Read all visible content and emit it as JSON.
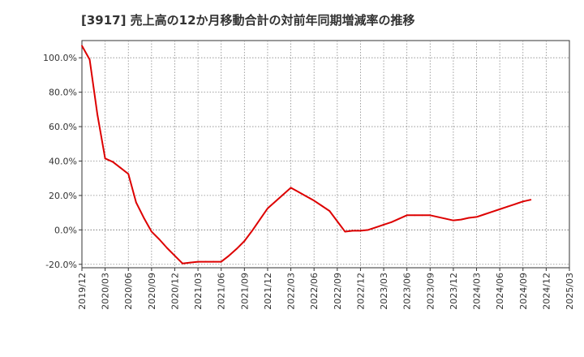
{
  "chart_data": {
    "type": "line",
    "title": "[3917]  売上高の12か月移動合計の対前年同期増減率の推移",
    "xlabel": "",
    "ylabel": "",
    "ylim": [
      -22,
      110
    ],
    "yticks": [
      -20,
      0,
      20,
      40,
      60,
      80,
      100
    ],
    "ytick_labels": [
      "-20.0%",
      "0.0%",
      "20.0%",
      "40.0%",
      "60.0%",
      "80.0%",
      "100.0%"
    ],
    "x_tick_labels": [
      "2019/12",
      "2020/03",
      "2020/06",
      "2020/09",
      "2020/12",
      "2021/03",
      "2021/06",
      "2021/09",
      "2021/12",
      "2022/03",
      "2022/06",
      "2022/09",
      "2022/12",
      "2023/03",
      "2023/06",
      "2023/09",
      "2023/12",
      "2024/03",
      "2024/06",
      "2024/09",
      "2024/12",
      "2025/03"
    ],
    "grid": true,
    "series": [
      {
        "name": "対前年同期増減率",
        "color": "#dd0000",
        "x": [
          0,
          1,
          2,
          3,
          4,
          5,
          6,
          7,
          8,
          9,
          10,
          11,
          12,
          13,
          14,
          15,
          16,
          17,
          18,
          19,
          20,
          21,
          22,
          23,
          24,
          25,
          26,
          27,
          28,
          29,
          30,
          31,
          32,
          33,
          34,
          35,
          36,
          37,
          38,
          39,
          40,
          41,
          42,
          43,
          44,
          45,
          46,
          47,
          48,
          49,
          50,
          51,
          52,
          53,
          54,
          55,
          56,
          57,
          58,
          59,
          60
        ],
        "values": [
          107,
          99,
          67,
          41.5,
          39.5,
          36,
          32.5,
          16,
          7,
          -1,
          -5.5,
          -10.5,
          -15,
          -19.5,
          -19,
          -18.5,
          -18.5,
          -18.5,
          -18.5,
          -15,
          -11,
          -6.5,
          -0.5,
          6,
          12.5,
          16.5,
          20.5,
          24.5,
          22,
          19.5,
          17,
          14,
          11,
          5,
          -1,
          -0.5,
          -0.5,
          0,
          1.5,
          3,
          4.5,
          6.5,
          8.5,
          8.5,
          8.5,
          8.5,
          7.5,
          6.5,
          5.5,
          6,
          7,
          7.5,
          9,
          10.5,
          12,
          13.5,
          15,
          16.5,
          17.5,
          null,
          null
        ]
      }
    ]
  }
}
